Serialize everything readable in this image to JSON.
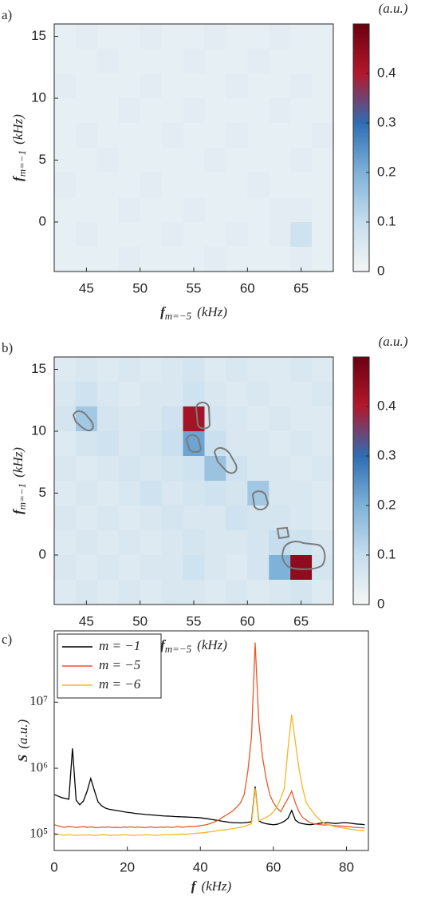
{
  "chart_data": [
    {
      "type": "heatmap",
      "panel": "a)",
      "colorbar_label": "(a.u.)",
      "xlabel": [
        "f",
        "m=−5",
        "(kHz)"
      ],
      "ylabel": [
        "f",
        "m=−1",
        "(kHz)"
      ],
      "x": [
        43,
        45,
        47,
        49,
        51,
        53,
        55,
        57,
        59,
        61,
        63,
        65,
        67
      ],
      "y": [
        15,
        13,
        11,
        9,
        7,
        5,
        3,
        1,
        -1,
        -3
      ],
      "z": [
        [
          0.03,
          0.04,
          0.03,
          0.03,
          0.04,
          0.03,
          0.03,
          0.04,
          0.03,
          0.03,
          0.04,
          0.03,
          0.03
        ],
        [
          0.03,
          0.03,
          0.04,
          0.03,
          0.03,
          0.03,
          0.04,
          0.03,
          0.03,
          0.04,
          0.03,
          0.03,
          0.03
        ],
        [
          0.04,
          0.03,
          0.03,
          0.03,
          0.04,
          0.03,
          0.03,
          0.03,
          0.04,
          0.03,
          0.03,
          0.04,
          0.03
        ],
        [
          0.03,
          0.03,
          0.03,
          0.04,
          0.03,
          0.03,
          0.04,
          0.03,
          0.03,
          0.03,
          0.04,
          0.03,
          0.03
        ],
        [
          0.03,
          0.04,
          0.03,
          0.03,
          0.03,
          0.04,
          0.03,
          0.03,
          0.04,
          0.03,
          0.03,
          0.03,
          0.04
        ],
        [
          0.03,
          0.03,
          0.04,
          0.03,
          0.03,
          0.03,
          0.03,
          0.04,
          0.03,
          0.03,
          0.03,
          0.04,
          0.03
        ],
        [
          0.04,
          0.03,
          0.03,
          0.03,
          0.04,
          0.03,
          0.03,
          0.03,
          0.03,
          0.04,
          0.03,
          0.03,
          0.03
        ],
        [
          0.03,
          0.03,
          0.03,
          0.04,
          0.03,
          0.03,
          0.04,
          0.03,
          0.03,
          0.03,
          0.04,
          0.04,
          0.03
        ],
        [
          0.03,
          0.04,
          0.03,
          0.03,
          0.03,
          0.04,
          0.03,
          0.03,
          0.04,
          0.03,
          0.04,
          0.08,
          0.03
        ],
        [
          0.03,
          0.03,
          0.03,
          0.04,
          0.03,
          0.03,
          0.03,
          0.04,
          0.03,
          0.03,
          0.03,
          0.04,
          0.03
        ]
      ],
      "xlim": [
        42,
        68
      ],
      "ylim": [
        -4,
        16
      ],
      "xticks": [
        45,
        50,
        55,
        60,
        65
      ],
      "yticks": [
        0,
        5,
        10,
        15
      ],
      "clim": [
        0,
        0.5
      ],
      "cticks": [
        0,
        0.1,
        0.2,
        0.3,
        0.4
      ],
      "colormap": [
        "#f4f6f5",
        "#c6dded",
        "#7eb2d8",
        "#2f6db3",
        "#b2182b",
        "#6a0010"
      ]
    },
    {
      "type": "heatmap",
      "panel": "b)",
      "colorbar_label": "(a.u.)",
      "xlabel": [
        "f",
        "m=−5",
        "(kHz)"
      ],
      "ylabel": [
        "f",
        "m=−1",
        "(kHz)"
      ],
      "x": [
        43,
        45,
        47,
        49,
        51,
        53,
        55,
        57,
        59,
        61,
        63,
        65,
        67
      ],
      "y": [
        15,
        13,
        11,
        9,
        7,
        5,
        3,
        1,
        -1,
        -3
      ],
      "z": [
        [
          0.05,
          0.06,
          0.05,
          0.06,
          0.05,
          0.06,
          0.07,
          0.05,
          0.06,
          0.05,
          0.05,
          0.06,
          0.05
        ],
        [
          0.06,
          0.08,
          0.06,
          0.05,
          0.06,
          0.06,
          0.08,
          0.06,
          0.05,
          0.06,
          0.05,
          0.05,
          0.06
        ],
        [
          0.07,
          0.15,
          0.07,
          0.06,
          0.06,
          0.08,
          0.42,
          0.07,
          0.06,
          0.05,
          0.06,
          0.05,
          0.05
        ],
        [
          0.05,
          0.07,
          0.08,
          0.06,
          0.07,
          0.09,
          0.22,
          0.09,
          0.06,
          0.06,
          0.05,
          0.06,
          0.05
        ],
        [
          0.06,
          0.05,
          0.06,
          0.07,
          0.06,
          0.07,
          0.08,
          0.16,
          0.08,
          0.06,
          0.06,
          0.05,
          0.06
        ],
        [
          0.05,
          0.06,
          0.05,
          0.06,
          0.08,
          0.06,
          0.07,
          0.08,
          0.07,
          0.15,
          0.06,
          0.06,
          0.05
        ],
        [
          0.06,
          0.05,
          0.06,
          0.05,
          0.06,
          0.07,
          0.06,
          0.06,
          0.08,
          0.07,
          0.07,
          0.06,
          0.05
        ],
        [
          0.05,
          0.06,
          0.05,
          0.06,
          0.05,
          0.06,
          0.07,
          0.06,
          0.06,
          0.07,
          0.1,
          0.08,
          0.06
        ],
        [
          0.06,
          0.05,
          0.06,
          0.05,
          0.06,
          0.06,
          0.08,
          0.06,
          0.05,
          0.07,
          0.2,
          0.45,
          0.07
        ],
        [
          0.05,
          0.06,
          0.05,
          0.06,
          0.05,
          0.06,
          0.06,
          0.05,
          0.06,
          0.05,
          0.06,
          0.07,
          0.05
        ]
      ],
      "xlim": [
        42,
        68
      ],
      "ylim": [
        -4,
        16
      ],
      "xticks": [
        45,
        50,
        55,
        60,
        65
      ],
      "yticks": [
        0,
        5,
        10,
        15
      ],
      "clim": [
        0,
        0.5
      ],
      "cticks": [
        0,
        0.1,
        0.2,
        0.3,
        0.4
      ],
      "colormap": [
        "#f4f6f5",
        "#c6dded",
        "#7eb2d8",
        "#2f6db3",
        "#b2182b",
        "#6a0010"
      ]
    },
    {
      "type": "line",
      "panel": "c)",
      "log_y": true,
      "xlabel": [
        "f",
        "(kHz)"
      ],
      "ylabel": [
        "S",
        "(a.u.)"
      ],
      "x": [
        0,
        1,
        2,
        3,
        4,
        5,
        6,
        7,
        8,
        9,
        10,
        11,
        12,
        13,
        14,
        15,
        16,
        17,
        18,
        19,
        20,
        21,
        22,
        23,
        24,
        25,
        26,
        27,
        28,
        29,
        30,
        31,
        32,
        33,
        34,
        35,
        36,
        37,
        38,
        39,
        40,
        41,
        42,
        43,
        44,
        45,
        46,
        47,
        48,
        49,
        50,
        51,
        52,
        53,
        54,
        55,
        56,
        57,
        58,
        59,
        60,
        61,
        62,
        63,
        64,
        65,
        66,
        67,
        68,
        69,
        70,
        71,
        72,
        73,
        74,
        75,
        76,
        77,
        78,
        79,
        80,
        81,
        82,
        83,
        84,
        85
      ],
      "series": [
        {
          "name": "m = −1",
          "color": "#000000",
          "values": [
            400000,
            380000,
            360000,
            350000,
            340000,
            2000000,
            330000,
            280000,
            320000,
            450000,
            700000,
            460000,
            310000,
            270000,
            250000,
            240000,
            235000,
            230000,
            225000,
            220000,
            215000,
            212000,
            208000,
            205000,
            203000,
            200000,
            198000,
            196000,
            194000,
            192000,
            190000,
            189000,
            188000,
            186000,
            185000,
            184000,
            183000,
            182000,
            181000,
            180000,
            178000,
            175000,
            172000,
            168000,
            165000,
            162000,
            158000,
            155000,
            152000,
            150000,
            150000,
            149000,
            150000,
            152000,
            155000,
            530000,
            160000,
            150000,
            145000,
            142000,
            140000,
            142000,
            148000,
            158000,
            175000,
            230000,
            165000,
            150000,
            145000,
            142000,
            140000,
            142000,
            145000,
            148000,
            150000,
            150000,
            148000,
            146000,
            148000,
            150000,
            150000,
            148000,
            145000,
            143000,
            142000,
            140000
          ]
        },
        {
          "name": "m = −5",
          "color": "#e8582a",
          "values": [
            140000,
            135000,
            130000,
            128000,
            132000,
            130000,
            127000,
            129000,
            131000,
            128000,
            130000,
            127000,
            126000,
            129000,
            128000,
            130000,
            127000,
            128000,
            126000,
            129000,
            128000,
            130000,
            127000,
            129000,
            128000,
            126000,
            130000,
            128000,
            127000,
            129000,
            128000,
            130000,
            127000,
            129000,
            131000,
            128000,
            130000,
            132000,
            131000,
            133000,
            135000,
            138000,
            142000,
            148000,
            155000,
            165000,
            180000,
            195000,
            210000,
            230000,
            260000,
            300000,
            400000,
            900000,
            3000000,
            80000000,
            5000000,
            1500000,
            700000,
            400000,
            300000,
            250000,
            220000,
            280000,
            350000,
            450000,
            300000,
            220000,
            180000,
            165000,
            150000,
            145000,
            142000,
            140000,
            138000,
            140000,
            137000,
            135000,
            134000,
            133000,
            132000,
            130000,
            128000,
            127000,
            126000,
            125000
          ]
        },
        {
          "name": "m = −6",
          "color": "#f2b824",
          "values": [
            105000,
            100000,
            98000,
            97000,
            99000,
            98000,
            96000,
            97000,
            98000,
            97000,
            98000,
            96000,
            97000,
            99000,
            98000,
            97000,
            96000,
            98000,
            97000,
            99000,
            98000,
            97000,
            96000,
            98000,
            97000,
            99000,
            98000,
            97000,
            96000,
            98000,
            98000,
            99000,
            98000,
            100000,
            99000,
            101000,
            100000,
            102000,
            103000,
            104000,
            105000,
            106000,
            108000,
            110000,
            112000,
            114000,
            116000,
            118000,
            120000,
            122000,
            125000,
            128000,
            132000,
            138000,
            145000,
            500000,
            160000,
            170000,
            180000,
            195000,
            220000,
            260000,
            350000,
            500000,
            2000000,
            6500000,
            2500000,
            1000000,
            500000,
            300000,
            250000,
            210000,
            180000,
            160000,
            145000,
            140000,
            135000,
            130000,
            128000,
            125000,
            122000,
            120000,
            118000,
            116000,
            115000,
            113000
          ]
        }
      ],
      "xlim": [
        0,
        86
      ],
      "ylim": [
        57000,
        120000000
      ],
      "xticks": [
        0,
        20,
        40,
        60,
        80
      ],
      "yticks": [
        {
          "value": 100000,
          "label": "10⁵"
        },
        {
          "value": 1000000,
          "label": "10⁶"
        },
        {
          "value": 10000000,
          "label": "10⁷"
        }
      ],
      "legend": "upper left"
    }
  ]
}
